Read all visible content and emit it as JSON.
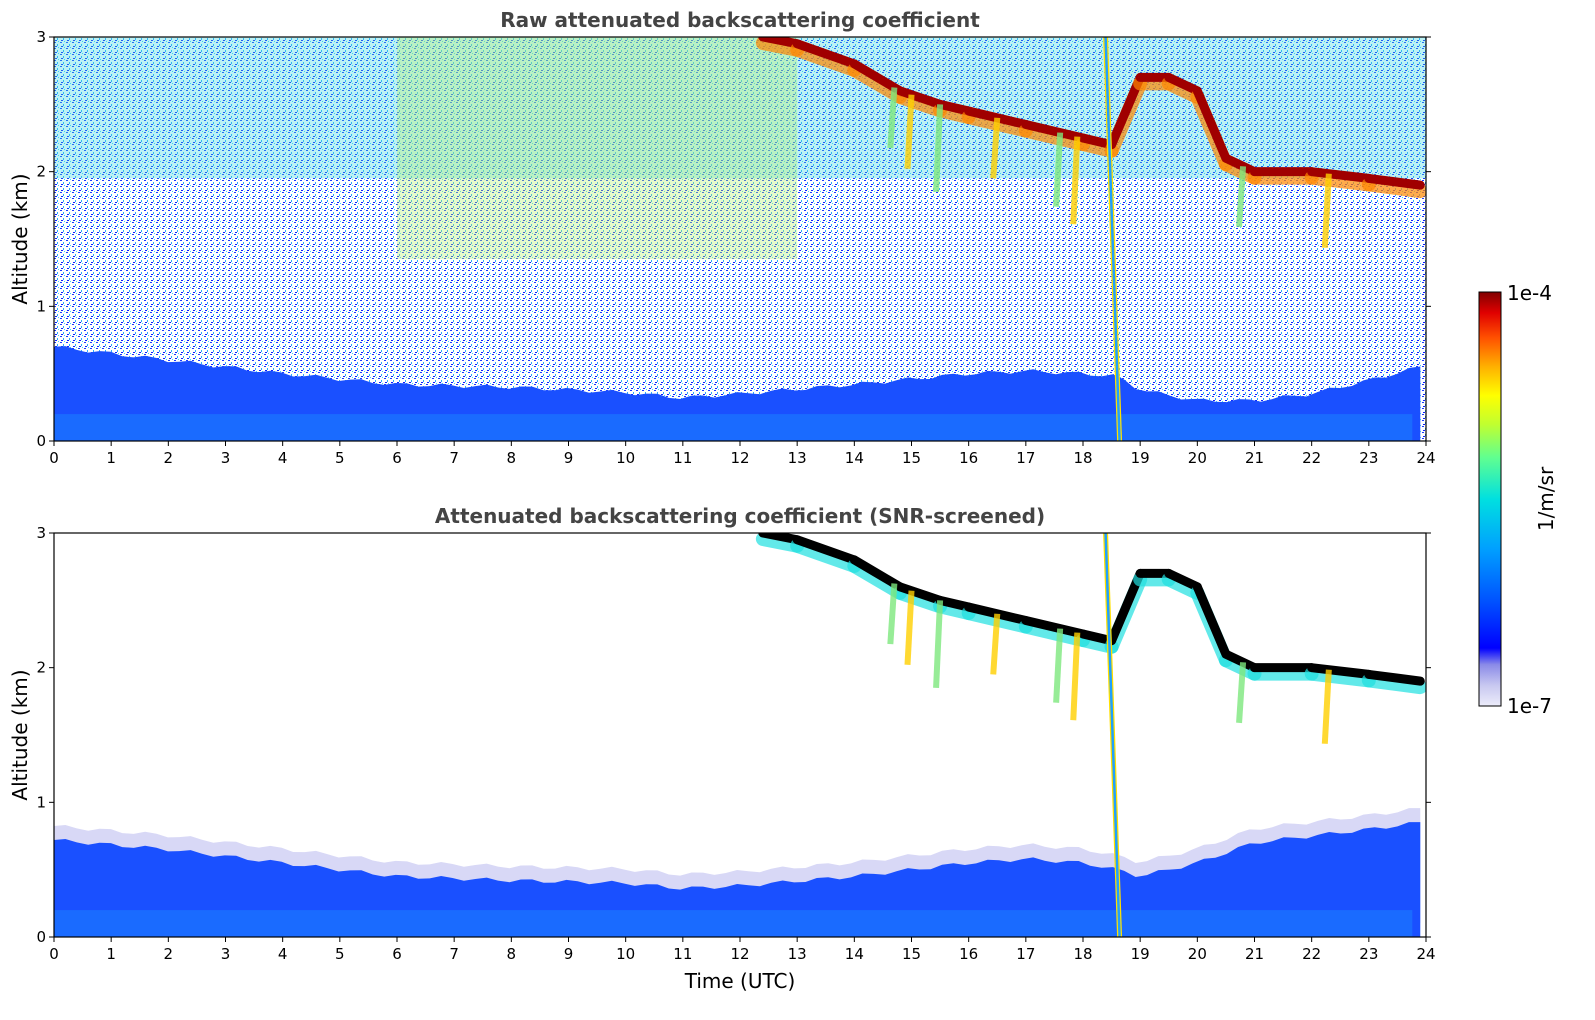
{
  "chart_data": [
    {
      "type": "heatmap",
      "title": "Raw attenuated backscattering coefficient",
      "xlabel": "",
      "ylabel": "Altitude (km)",
      "xlim": [
        0,
        24
      ],
      "ylim": [
        0,
        3
      ],
      "xticks": [
        0,
        1,
        2,
        3,
        4,
        5,
        6,
        7,
        8,
        9,
        10,
        11,
        12,
        13,
        14,
        15,
        16,
        17,
        18,
        19,
        20,
        21,
        22,
        23,
        24
      ],
      "yticks": [
        0,
        1,
        2,
        3
      ],
      "grid": false,
      "features": [
        {
          "name": "boundary-layer",
          "x": [
            0,
            2,
            4,
            6,
            8,
            10,
            11,
            12,
            14,
            16,
            17,
            18,
            18.6,
            19,
            20,
            21,
            22,
            23,
            23.9
          ],
          "y_top": [
            0.7,
            0.6,
            0.5,
            0.42,
            0.4,
            0.36,
            0.32,
            0.35,
            0.42,
            0.5,
            0.52,
            0.5,
            0.48,
            0.38,
            0.3,
            0.3,
            0.35,
            0.45,
            0.55
          ]
        },
        {
          "name": "cloud-layer",
          "x": [
            12.4,
            13,
            14,
            14.8,
            15.5,
            16,
            17,
            18,
            18.5,
            19,
            19.5,
            20,
            20.5,
            21,
            22,
            23,
            23.9
          ],
          "y": [
            3.0,
            2.95,
            2.8,
            2.6,
            2.5,
            2.45,
            2.35,
            2.25,
            2.2,
            2.7,
            2.7,
            2.6,
            2.1,
            2.0,
            2.0,
            1.95,
            1.9
          ]
        },
        {
          "name": "precipitation-streak",
          "x": [
            18.5
          ],
          "y_range": [
            0,
            3
          ]
        }
      ]
    },
    {
      "type": "heatmap",
      "title": "Attenuated backscattering coefficient (SNR-screened)",
      "xlabel": "Time (UTC)",
      "ylabel": "Altitude (km)",
      "xlim": [
        0,
        24
      ],
      "ylim": [
        0,
        3
      ],
      "xticks": [
        0,
        1,
        2,
        3,
        4,
        5,
        6,
        7,
        8,
        9,
        10,
        11,
        12,
        13,
        14,
        15,
        16,
        17,
        18,
        19,
        20,
        21,
        22,
        23,
        24
      ],
      "yticks": [
        0,
        1,
        2,
        3
      ],
      "grid": false,
      "features": [
        {
          "name": "boundary-layer",
          "x": [
            0,
            2,
            4,
            6,
            8,
            10,
            11,
            12,
            14,
            16,
            17,
            18,
            18.6,
            19,
            20,
            21,
            22,
            23,
            23.9
          ],
          "y_top": [
            0.72,
            0.65,
            0.55,
            0.45,
            0.42,
            0.4,
            0.36,
            0.38,
            0.45,
            0.55,
            0.58,
            0.55,
            0.5,
            0.45,
            0.55,
            0.7,
            0.75,
            0.8,
            0.85
          ]
        },
        {
          "name": "cloud-layer",
          "x": [
            12.4,
            13,
            14,
            14.8,
            15.5,
            16,
            17,
            18,
            18.5,
            19,
            19.5,
            20,
            20.5,
            21,
            22,
            23,
            23.9
          ],
          "y": [
            3.0,
            2.95,
            2.8,
            2.6,
            2.5,
            2.45,
            2.35,
            2.25,
            2.2,
            2.7,
            2.7,
            2.6,
            2.1,
            2.0,
            2.0,
            1.95,
            1.9
          ]
        },
        {
          "name": "precipitation-streak",
          "x": [
            18.5
          ],
          "y_range": [
            0,
            3
          ]
        }
      ]
    }
  ],
  "colorbar": {
    "label": "1/m/sr",
    "min_label": "1e-7",
    "max_label": "1e-4",
    "scale": "log",
    "range": [
      1e-07,
      0.0001
    ],
    "colormap": "jet",
    "colors": [
      "#ececfa",
      "#c8c8f0",
      "#8a8ae8",
      "#0000ff",
      "#0050ff",
      "#00a0ff",
      "#00e0e0",
      "#60ff90",
      "#c0ff30",
      "#ffff00",
      "#ffb000",
      "#ff5000",
      "#e00000",
      "#800000"
    ]
  }
}
